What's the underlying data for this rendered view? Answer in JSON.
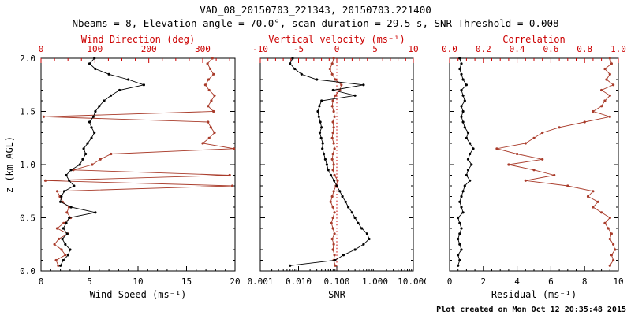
{
  "header": {
    "title": "VAD_08_20150703_221343, 20150703.221400",
    "subtitle": "Nbeams = 8, Elevation angle = 70.0°, scan duration = 29.5 s, SNR Threshold = 0.008"
  },
  "footer": {
    "created": "Plot created on Mon Oct 12 20:35:48 2015"
  },
  "colors": {
    "black": "#000000",
    "axis_red": "#cc0000",
    "series_red": "#a93b2a",
    "background": "#ffffff"
  },
  "chart_data": {
    "type": "line",
    "orientation": "profile-vs-height",
    "y_axis": {
      "label": "z (km AGL)",
      "min": 0.0,
      "max": 2.0,
      "tick_values": [
        0.0,
        0.5,
        1.0,
        1.5,
        2.0
      ],
      "tick_labels": [
        "0.0",
        "0.5",
        "1.0",
        "1.5",
        "2.0"
      ],
      "minor_step": 0.1
    },
    "z": [
      0.05,
      0.1,
      0.15,
      0.2,
      0.25,
      0.3,
      0.35,
      0.4,
      0.45,
      0.5,
      0.55,
      0.6,
      0.65,
      0.7,
      0.75,
      0.8,
      0.85,
      0.9,
      0.95,
      1.0,
      1.05,
      1.1,
      1.15,
      1.2,
      1.25,
      1.3,
      1.35,
      1.4,
      1.45,
      1.5,
      1.55,
      1.6,
      1.65,
      1.7,
      1.75,
      1.8,
      1.85,
      1.9,
      1.95,
      2.0
    ],
    "series": {
      "wind_speed": [
        2.0,
        2.3,
        2.8,
        3.0,
        2.5,
        2.2,
        2.7,
        2.3,
        2.6,
        2.9,
        5.6,
        3.1,
        2.0,
        2.1,
        2.4,
        3.4,
        2.9,
        2.6,
        3.1,
        4.0,
        4.3,
        4.6,
        4.4,
        4.8,
        5.2,
        5.5,
        5.2,
        5.0,
        5.4,
        5.6,
        6.0,
        6.5,
        7.2,
        8.1,
        10.6,
        9.0,
        7.0,
        5.6,
        5.0,
        5.5
      ],
      "wind_direction": [
        32,
        28,
        45,
        38,
        25,
        33,
        50,
        30,
        42,
        55,
        48,
        52,
        40,
        35,
        30,
        355,
        8,
        350,
        60,
        95,
        110,
        130,
        358,
        300,
        312,
        322,
        315,
        310,
        5,
        320,
        310,
        316,
        322,
        312,
        305,
        311,
        320,
        314,
        309,
        318
      ],
      "vertical_velocity": [
        -0.2,
        -0.4,
        -0.3,
        -0.5,
        -0.4,
        -0.6,
        -0.3,
        -0.5,
        -0.7,
        -0.5,
        -0.3,
        -0.5,
        -0.8,
        -0.6,
        -0.4,
        -0.1,
        0.1,
        -0.3,
        -0.5,
        -0.4,
        -0.6,
        -0.5,
        -0.3,
        -0.4,
        -0.6,
        -0.5,
        -0.4,
        -0.5,
        -0.3,
        -0.4,
        -0.6,
        -0.5,
        -0.2,
        0.4,
        0.6,
        -0.2,
        -0.6,
        -0.9,
        -0.6,
        -0.4
      ],
      "snr": [
        0.006,
        0.09,
        0.15,
        0.3,
        0.5,
        0.7,
        0.62,
        0.45,
        0.36,
        0.3,
        0.25,
        0.2,
        0.17,
        0.14,
        0.12,
        0.1,
        0.085,
        0.07,
        0.06,
        0.055,
        0.05,
        0.046,
        0.042,
        0.043,
        0.039,
        0.036,
        0.04,
        0.037,
        0.034,
        0.032,
        0.035,
        0.04,
        0.3,
        0.08,
        0.5,
        0.03,
        0.012,
        0.008,
        0.006,
        0.007
      ],
      "residual": [
        0.5,
        0.6,
        0.5,
        0.7,
        0.6,
        0.5,
        0.6,
        0.7,
        0.6,
        0.5,
        0.8,
        0.7,
        0.6,
        0.7,
        0.8,
        0.9,
        1.2,
        1.0,
        1.1,
        1.3,
        1.1,
        1.2,
        1.4,
        1.2,
        1.0,
        1.1,
        0.9,
        0.8,
        0.7,
        0.8,
        0.7,
        0.9,
        0.8,
        0.7,
        1.0,
        0.8,
        0.7,
        0.6,
        0.7,
        0.6
      ],
      "correlation": [
        0.95,
        0.97,
        0.96,
        0.98,
        0.97,
        0.95,
        0.96,
        0.94,
        0.92,
        0.95,
        0.9,
        0.85,
        0.88,
        0.82,
        0.85,
        0.7,
        0.45,
        0.62,
        0.5,
        0.35,
        0.55,
        0.4,
        0.28,
        0.45,
        0.5,
        0.55,
        0.65,
        0.8,
        0.95,
        0.85,
        0.9,
        0.92,
        0.95,
        0.9,
        0.97,
        0.93,
        0.95,
        0.92,
        0.96,
        0.95
      ]
    },
    "panels": [
      {
        "name": "wind",
        "show_y_labels": true,
        "bottom": {
          "label": "Wind Speed (ms⁻¹)",
          "series": "wind_speed",
          "min": 0,
          "max": 20,
          "tick_values": [
            0,
            5,
            10,
            15,
            20
          ],
          "tick_labels": [
            "0",
            "5",
            "10",
            "15",
            "20"
          ],
          "minor_step": 1
        },
        "top": {
          "label": "Wind Direction (deg)",
          "series": "wind_direction",
          "min": 0,
          "max": 360,
          "tick_values": [
            0,
            100,
            200,
            300
          ],
          "tick_labels": [
            "0",
            "100",
            "200",
            "300"
          ],
          "minor_step": 25
        }
      },
      {
        "name": "snr",
        "show_y_labels": false,
        "bottom": {
          "label": "SNR",
          "series": "snr",
          "min": 0.001,
          "max": 10,
          "log": true,
          "tick_values": [
            0.001,
            0.01,
            0.1,
            1,
            10
          ],
          "tick_labels": [
            "0.001",
            "0.010",
            "0.100",
            "1.000",
            "10.000"
          ]
        },
        "top": {
          "label": "Vertical velocity (ms⁻¹)",
          "series": "vertical_velocity",
          "min": -10,
          "max": 10,
          "tick_values": [
            -10,
            -5,
            0,
            5,
            10
          ],
          "tick_labels": [
            "-10",
            "-5",
            "0",
            "5",
            "10"
          ],
          "minor_step": 1,
          "zero_line": true
        }
      },
      {
        "name": "residual",
        "show_y_labels": false,
        "bottom": {
          "label": "Residual (ms⁻¹)",
          "series": "residual",
          "min": 0,
          "max": 10,
          "tick_values": [
            0,
            2,
            4,
            6,
            8,
            10
          ],
          "tick_labels": [
            "0",
            "2",
            "4",
            "6",
            "8",
            "10"
          ],
          "minor_step": 0.5
        },
        "top": {
          "label": "Correlation",
          "series": "correlation",
          "min": 0,
          "max": 1,
          "tick_values": [
            0,
            0.2,
            0.4,
            0.6,
            0.8,
            1.0
          ],
          "tick_labels": [
            "0.0",
            "0.2",
            "0.4",
            "0.6",
            "0.8",
            "1.0"
          ],
          "minor_step": 0.05
        }
      }
    ]
  }
}
